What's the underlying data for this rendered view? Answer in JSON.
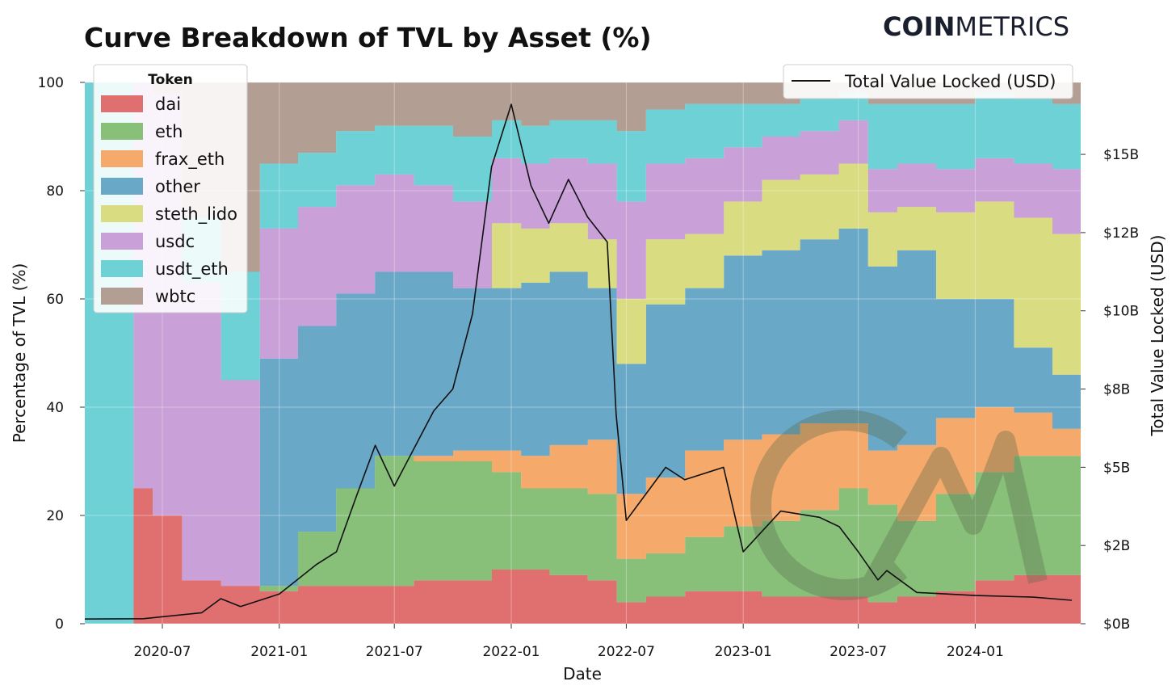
{
  "title": "Curve Breakdown of TVL by Asset (%)",
  "brand": {
    "bold": "COIN",
    "light": "METRICS"
  },
  "chart_data": {
    "type": "area",
    "stacked": true,
    "title": "Curve Breakdown of TVL by Asset (%)",
    "xlabel": "Date",
    "ylabel": "Percentage of TVL (%)",
    "y2label": "Total Value Locked (USD)",
    "ylim": [
      0,
      100
    ],
    "y2lim_billions": [
      0,
      17.3
    ],
    "yticks": [
      0,
      20,
      40,
      60,
      80,
      100
    ],
    "y2ticks": [
      {
        "value": 0,
        "label": "$0B"
      },
      {
        "value": 2.5,
        "label": "$2B"
      },
      {
        "value": 5,
        "label": "$5B"
      },
      {
        "value": 7.5,
        "label": "$8B"
      },
      {
        "value": 10,
        "label": "$10B"
      },
      {
        "value": 12.5,
        "label": "$12B"
      },
      {
        "value": 15,
        "label": "$15B"
      }
    ],
    "xticks": [
      "2020-07",
      "2021-01",
      "2021-07",
      "2022-01",
      "2022-07",
      "2023-01",
      "2023-07",
      "2024-01"
    ],
    "legend_title": "Token",
    "legend_position": "top-left",
    "line_legend": "Total Value Locked (USD)",
    "line_legend_position": "top-right",
    "grid": true,
    "x": [
      "2020-03",
      "2020-05",
      "2020-06",
      "2020-07",
      "2020-09",
      "2020-11",
      "2021-01",
      "2021-03",
      "2021-05",
      "2021-07",
      "2021-09",
      "2021-11",
      "2022-01",
      "2022-02",
      "2022-04",
      "2022-06",
      "2022-07",
      "2022-09",
      "2022-11",
      "2023-01",
      "2023-03",
      "2023-05",
      "2023-07",
      "2023-08",
      "2023-10",
      "2023-12",
      "2024-02",
      "2024-04",
      "2024-06"
    ],
    "series": [
      {
        "name": "dai",
        "color": "#e07070",
        "values": [
          0,
          0,
          25,
          20,
          8,
          7,
          6,
          7,
          7,
          7,
          8,
          8,
          10,
          10,
          9,
          8,
          4,
          5,
          6,
          6,
          5,
          5,
          5,
          4,
          5,
          6,
          8,
          9,
          9
        ]
      },
      {
        "name": "eth",
        "color": "#88c07a",
        "values": [
          0,
          0,
          0,
          0,
          0,
          0,
          1,
          10,
          18,
          24,
          22,
          22,
          18,
          15,
          16,
          16,
          8,
          8,
          10,
          12,
          14,
          16,
          20,
          18,
          14,
          18,
          20,
          22,
          22
        ]
      },
      {
        "name": "frax_eth",
        "color": "#f5a96b",
        "values": [
          0,
          0,
          0,
          0,
          0,
          0,
          0,
          0,
          0,
          0,
          1,
          2,
          4,
          6,
          8,
          10,
          12,
          14,
          16,
          16,
          16,
          16,
          12,
          10,
          14,
          14,
          12,
          8,
          5
        ]
      },
      {
        "name": "other",
        "color": "#6aa8c8",
        "values": [
          0,
          0,
          0,
          0,
          0,
          0,
          42,
          38,
          36,
          34,
          34,
          30,
          30,
          32,
          32,
          28,
          24,
          32,
          30,
          34,
          34,
          34,
          36,
          34,
          36,
          22,
          20,
          12,
          10
        ]
      },
      {
        "name": "steth_lido",
        "color": "#d9dc80",
        "values": [
          0,
          0,
          0,
          0,
          0,
          0,
          0,
          0,
          0,
          0,
          0,
          0,
          12,
          10,
          9,
          9,
          12,
          12,
          10,
          10,
          13,
          12,
          12,
          10,
          8,
          16,
          18,
          24,
          26
        ]
      },
      {
        "name": "usdc",
        "color": "#c9a0d8",
        "values": [
          0,
          0,
          75,
          78,
          55,
          38,
          24,
          22,
          20,
          18,
          16,
          16,
          12,
          12,
          12,
          14,
          18,
          14,
          14,
          10,
          8,
          8,
          8,
          8,
          8,
          8,
          8,
          10,
          12
        ]
      },
      {
        "name": "usdt_eth",
        "color": "#6dd1d6",
        "values": [
          100,
          100,
          0,
          0,
          12,
          20,
          12,
          10,
          10,
          9,
          11,
          12,
          7,
          7,
          7,
          8,
          13,
          10,
          10,
          8,
          6,
          6,
          5,
          12,
          11,
          12,
          12,
          12,
          12
        ]
      },
      {
        "name": "wbtc",
        "color": "#b39e94",
        "values": [
          0,
          0,
          0,
          2,
          25,
          35,
          15,
          13,
          9,
          8,
          8,
          10,
          7,
          8,
          7,
          7,
          9,
          5,
          4,
          4,
          4,
          3,
          2,
          4,
          4,
          4,
          2,
          3,
          4
        ]
      }
    ],
    "tvl_line": {
      "name": "Total Value Locked (USD)",
      "color": "#111111",
      "unit": "USD billions",
      "x": [
        "2020-03",
        "2020-06",
        "2020-09",
        "2020-10",
        "2020-11",
        "2021-01",
        "2021-03",
        "2021-04",
        "2021-05",
        "2021-06",
        "2021-07",
        "2021-08",
        "2021-09",
        "2021-10",
        "2021-11",
        "2021-12",
        "2022-01",
        "2022-02",
        "2022-03",
        "2022-04",
        "2022-05",
        "2022-06",
        "2022-06-15",
        "2022-07",
        "2022-09",
        "2022-10",
        "2022-12",
        "2023-01",
        "2023-03",
        "2023-05",
        "2023-06",
        "2023-07",
        "2023-08",
        "2023-08-15",
        "2023-10",
        "2024-01",
        "2024-04",
        "2024-06"
      ],
      "values": [
        0.15,
        0.16,
        0.35,
        0.8,
        0.55,
        0.95,
        1.9,
        2.3,
        4.0,
        5.7,
        4.4,
        5.6,
        6.8,
        7.5,
        9.9,
        14.6,
        16.6,
        14.0,
        12.8,
        14.2,
        13.0,
        12.2,
        6.7,
        3.3,
        5.0,
        4.6,
        5.0,
        2.3,
        3.6,
        3.4,
        3.1,
        2.3,
        1.4,
        1.7,
        1.0,
        0.9,
        0.85,
        0.75
      ]
    }
  }
}
